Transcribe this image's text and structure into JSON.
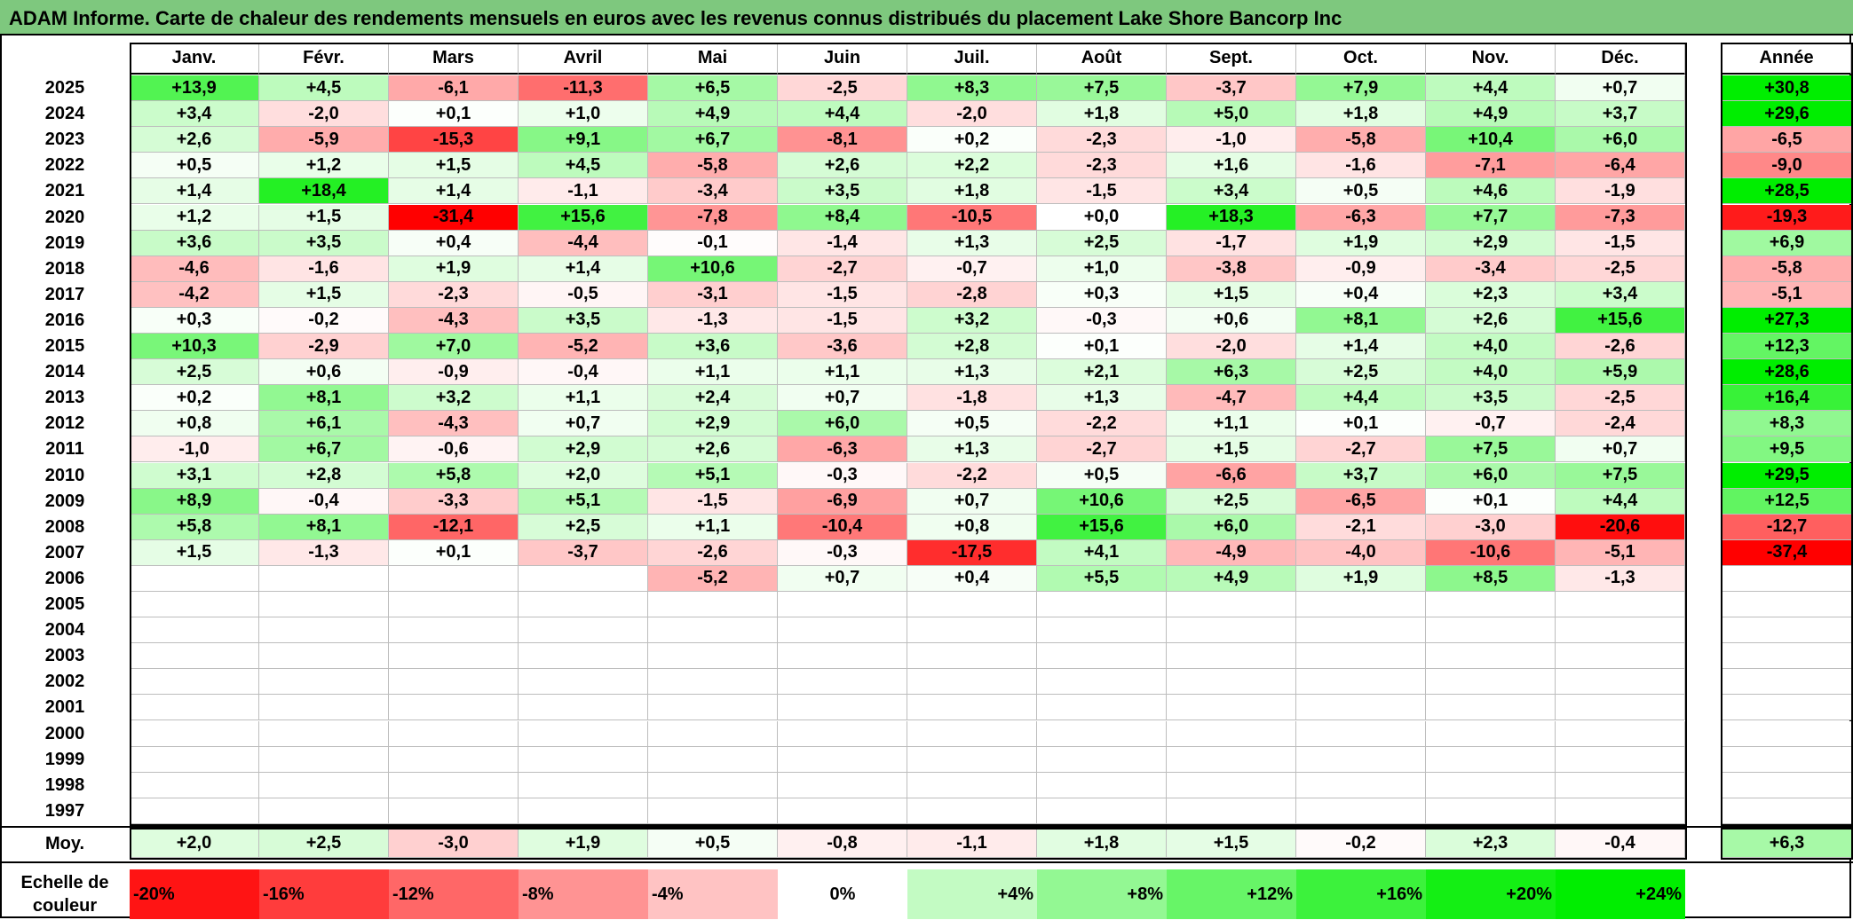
{
  "title": "ADAM Informe. Carte de chaleur des rendements mensuels en euros avec les revenus connus distribués du placement Lake Shore Bancorp Inc",
  "chart_data": {
    "type": "heatmap",
    "title": "ADAM Informe. Carte de chaleur des rendements mensuels en euros avec les revenus connus distribués du placement Lake Shore Bancorp Inc",
    "columns": [
      "Janv.",
      "Févr.",
      "Mars",
      "Avril",
      "Mai",
      "Juin",
      "Juil.",
      "Août",
      "Sept.",
      "Oct.",
      "Nov.",
      "Déc."
    ],
    "annual_header": "Année",
    "rows": [
      {
        "year": "2025",
        "values": [
          "+13,9",
          "+4,5",
          "-6,1",
          "-11,3",
          "+6,5",
          "-2,5",
          "+8,3",
          "+7,5",
          "-3,7",
          "+7,9",
          "+4,4",
          "+0,7"
        ],
        "annual": "+30,8"
      },
      {
        "year": "2024",
        "values": [
          "+3,4",
          "-2,0",
          "+0,1",
          "+1,0",
          "+4,9",
          "+4,4",
          "-2,0",
          "+1,8",
          "+5,0",
          "+1,8",
          "+4,9",
          "+3,7"
        ],
        "annual": "+29,6"
      },
      {
        "year": "2023",
        "values": [
          "+2,6",
          "-5,9",
          "-15,3",
          "+9,1",
          "+6,7",
          "-8,1",
          "+0,2",
          "-2,3",
          "-1,0",
          "-5,8",
          "+10,4",
          "+6,0"
        ],
        "annual": "-6,5"
      },
      {
        "year": "2022",
        "values": [
          "+0,5",
          "+1,2",
          "+1,5",
          "+4,5",
          "-5,8",
          "+2,6",
          "+2,2",
          "-2,3",
          "+1,6",
          "-1,6",
          "-7,1",
          "-6,4"
        ],
        "annual": "-9,0"
      },
      {
        "year": "2021",
        "values": [
          "+1,4",
          "+18,4",
          "+1,4",
          "-1,1",
          "-3,4",
          "+3,5",
          "+1,8",
          "-1,5",
          "+3,4",
          "+0,5",
          "+4,6",
          "-1,9"
        ],
        "annual": "+28,5"
      },
      {
        "year": "2020",
        "values": [
          "+1,2",
          "+1,5",
          "-31,4",
          "+15,6",
          "-7,8",
          "+8,4",
          "-10,5",
          "+0,0",
          "+18,3",
          "-6,3",
          "+7,7",
          "-7,3"
        ],
        "annual": "-19,3"
      },
      {
        "year": "2019",
        "values": [
          "+3,6",
          "+3,5",
          "+0,4",
          "-4,4",
          "-0,1",
          "-1,4",
          "+1,3",
          "+2,5",
          "-1,7",
          "+1,9",
          "+2,9",
          "-1,5"
        ],
        "annual": "+6,9"
      },
      {
        "year": "2018",
        "values": [
          "-4,6",
          "-1,6",
          "+1,9",
          "+1,4",
          "+10,6",
          "-2,7",
          "-0,7",
          "+1,0",
          "-3,8",
          "-0,9",
          "-3,4",
          "-2,5"
        ],
        "annual": "-5,8"
      },
      {
        "year": "2017",
        "values": [
          "-4,2",
          "+1,5",
          "-2,3",
          "-0,5",
          "-3,1",
          "-1,5",
          "-2,8",
          "+0,3",
          "+1,5",
          "+0,4",
          "+2,3",
          "+3,4"
        ],
        "annual": "-5,1"
      },
      {
        "year": "2016",
        "values": [
          "+0,3",
          "-0,2",
          "-4,3",
          "+3,5",
          "-1,3",
          "-1,5",
          "+3,2",
          "-0,3",
          "+0,6",
          "+8,1",
          "+2,6",
          "+15,6"
        ],
        "annual": "+27,3"
      },
      {
        "year": "2015",
        "values": [
          "+10,3",
          "-2,9",
          "+7,0",
          "-5,2",
          "+3,6",
          "-3,6",
          "+2,8",
          "+0,1",
          "-2,0",
          "+1,4",
          "+4,0",
          "-2,6"
        ],
        "annual": "+12,3"
      },
      {
        "year": "2014",
        "values": [
          "+2,5",
          "+0,6",
          "-0,9",
          "-0,4",
          "+1,1",
          "+1,1",
          "+1,3",
          "+2,1",
          "+6,3",
          "+2,5",
          "+4,0",
          "+5,9"
        ],
        "annual": "+28,6"
      },
      {
        "year": "2013",
        "values": [
          "+0,2",
          "+8,1",
          "+3,2",
          "+1,1",
          "+2,4",
          "+0,7",
          "-1,8",
          "+1,3",
          "-4,7",
          "+4,4",
          "+3,5",
          "-2,5"
        ],
        "annual": "+16,4"
      },
      {
        "year": "2012",
        "values": [
          "+0,8",
          "+6,1",
          "-4,3",
          "+0,7",
          "+2,9",
          "+6,0",
          "+0,5",
          "-2,2",
          "+1,1",
          "+0,1",
          "-0,7",
          "-2,4"
        ],
        "annual": "+8,3"
      },
      {
        "year": "2011",
        "values": [
          "-1,0",
          "+6,7",
          "-0,6",
          "+2,9",
          "+2,6",
          "-6,3",
          "+1,3",
          "-2,7",
          "+1,5",
          "-2,7",
          "+7,5",
          "+0,7"
        ],
        "annual": "+9,5"
      },
      {
        "year": "2010",
        "values": [
          "+3,1",
          "+2,8",
          "+5,8",
          "+2,0",
          "+5,1",
          "-0,3",
          "-2,2",
          "+0,5",
          "-6,6",
          "+3,7",
          "+6,0",
          "+7,5"
        ],
        "annual": "+29,5"
      },
      {
        "year": "2009",
        "values": [
          "+8,9",
          "-0,4",
          "-3,3",
          "+5,1",
          "-1,5",
          "-6,9",
          "+0,7",
          "+10,6",
          "+2,5",
          "-6,5",
          "+0,1",
          "+4,4"
        ],
        "annual": "+12,5"
      },
      {
        "year": "2008",
        "values": [
          "+5,8",
          "+8,1",
          "-12,1",
          "+2,5",
          "+1,1",
          "-10,4",
          "+0,8",
          "+15,6",
          "+6,0",
          "-2,1",
          "-3,0",
          "-20,6"
        ],
        "annual": "-12,7"
      },
      {
        "year": "2007",
        "values": [
          "+1,5",
          "-1,3",
          "+0,1",
          "-3,7",
          "-2,6",
          "-0,3",
          "-17,5",
          "+4,1",
          "-4,9",
          "-4,0",
          "-10,6",
          "-5,1"
        ],
        "annual": "-37,4"
      },
      {
        "year": "2006",
        "values": [
          "",
          "",
          "",
          "",
          "-5,2",
          "+0,7",
          "+0,4",
          "+5,5",
          "+4,9",
          "+1,9",
          "+8,5",
          "-1,3"
        ],
        "annual": ""
      },
      {
        "year": "2005",
        "values": [
          "",
          "",
          "",
          "",
          "",
          "",
          "",
          "",
          "",
          "",
          "",
          ""
        ],
        "annual": ""
      },
      {
        "year": "2004",
        "values": [
          "",
          "",
          "",
          "",
          "",
          "",
          "",
          "",
          "",
          "",
          "",
          ""
        ],
        "annual": ""
      },
      {
        "year": "2003",
        "values": [
          "",
          "",
          "",
          "",
          "",
          "",
          "",
          "",
          "",
          "",
          "",
          ""
        ],
        "annual": ""
      },
      {
        "year": "2002",
        "values": [
          "",
          "",
          "",
          "",
          "",
          "",
          "",
          "",
          "",
          "",
          "",
          ""
        ],
        "annual": ""
      },
      {
        "year": "2001",
        "values": [
          "",
          "",
          "",
          "",
          "",
          "",
          "",
          "",
          "",
          "",
          "",
          ""
        ],
        "annual": ""
      },
      {
        "year": "2000",
        "values": [
          "",
          "",
          "",
          "",
          "",
          "",
          "",
          "",
          "",
          "",
          "",
          ""
        ],
        "annual": ""
      },
      {
        "year": "1999",
        "values": [
          "",
          "",
          "",
          "",
          "",
          "",
          "",
          "",
          "",
          "",
          "",
          ""
        ],
        "annual": ""
      },
      {
        "year": "1998",
        "values": [
          "",
          "",
          "",
          "",
          "",
          "",
          "",
          "",
          "",
          "",
          "",
          ""
        ],
        "annual": ""
      },
      {
        "year": "1997",
        "values": [
          "",
          "",
          "",
          "",
          "",
          "",
          "",
          "",
          "",
          "",
          "",
          ""
        ],
        "annual": ""
      }
    ],
    "average": {
      "label": "Moy.",
      "values": [
        "+2,0",
        "+2,5",
        "-3,0",
        "+1,9",
        "+0,5",
        "-0,8",
        "-1,1",
        "+1,8",
        "+1,5",
        "-0,2",
        "+2,3",
        "-0,4"
      ],
      "annual": "+6,3"
    },
    "color_scale": {
      "label": "Echelle de couleur",
      "stops": [
        "-20%",
        "-16%",
        "-12%",
        "-8%",
        "-4%",
        "0%",
        "+4%",
        "+8%",
        "+12%",
        "+16%",
        "+20%",
        "+24%"
      ],
      "stop_values": [
        -20,
        -16,
        -12,
        -8,
        -4,
        0,
        4,
        8,
        12,
        16,
        20,
        24
      ],
      "negative_color": "#ff0000",
      "neutral_color": "#ffffff",
      "positive_color": "#00ee00"
    }
  }
}
